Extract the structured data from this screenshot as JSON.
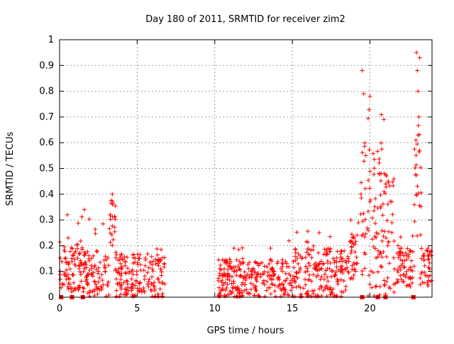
{
  "chart_data": {
    "type": "scatter",
    "title": "Day 180 of 2011, SRMTID for receiver zim2",
    "xlabel": "GPS time / hours",
    "ylabel": "SRMTID / TECUs",
    "xlim": [
      0,
      24
    ],
    "ylim": [
      0,
      1
    ],
    "xticks": [
      "0",
      "5",
      "10",
      "15",
      "20"
    ],
    "yticks": [
      "0",
      "0.1",
      "0.2",
      "0.3",
      "0.4",
      "0.5",
      "0.6",
      "0.7",
      "0.8",
      "0.9",
      "1"
    ],
    "grid": true,
    "marker_color": "#ff0000",
    "series": [
      {
        "name": "SRMTID",
        "marker": "plus",
        "segments": [
          {
            "x_range": [
              0.0,
              1.5
            ],
            "y_base": 0.12,
            "y_spread": 0.1,
            "y_peak": 0.32
          },
          {
            "x_range": [
              1.5,
              3.2
            ],
            "y_base": 0.09,
            "y_spread": 0.09,
            "y_peak": 0.34
          },
          {
            "x_range": [
              3.2,
              3.6
            ],
            "y_base": 0.3,
            "y_spread": 0.1,
            "y_peak": 0.4
          },
          {
            "x_range": [
              3.6,
              6.8
            ],
            "y_base": 0.08,
            "y_spread": 0.09,
            "y_peak": 0.19
          },
          {
            "x_range": [
              10.2,
              15.0
            ],
            "y_base": 0.07,
            "y_spread": 0.08,
            "y_peak": 0.22
          },
          {
            "x_range": [
              15.0,
              18.5
            ],
            "y_base": 0.09,
            "y_spread": 0.1,
            "y_peak": 0.27
          },
          {
            "x_range": [
              18.5,
              19.2
            ],
            "y_base": 0.15,
            "y_spread": 0.1,
            "y_peak": 0.3
          },
          {
            "x_range": [
              19.2,
              21.0
            ],
            "y_base": 0.3,
            "y_spread": 0.3,
            "y_peak": 0.88
          },
          {
            "x_range": [
              21.0,
              21.6
            ],
            "y_base": 0.25,
            "y_spread": 0.25,
            "y_peak": 0.57
          },
          {
            "x_range": [
              21.6,
              22.8
            ],
            "y_base": 0.12,
            "y_spread": 0.08,
            "y_peak": 0.25
          },
          {
            "x_range": [
              22.8,
              23.3
            ],
            "y_base": 0.35,
            "y_spread": 0.35,
            "y_peak": 0.95
          },
          {
            "x_range": [
              23.3,
              24.0
            ],
            "y_base": 0.12,
            "y_spread": 0.08,
            "y_peak": 0.2
          }
        ],
        "notable_points": [
          {
            "x": 19.5,
            "y": 0.88
          },
          {
            "x": 19.6,
            "y": 0.79
          },
          {
            "x": 20.0,
            "y": 0.78
          },
          {
            "x": 20.9,
            "y": 0.69
          },
          {
            "x": 23.0,
            "y": 0.95
          },
          {
            "x": 23.05,
            "y": 0.88
          },
          {
            "x": 23.1,
            "y": 0.8
          },
          {
            "x": 23.15,
            "y": 0.7
          },
          {
            "x": 23.2,
            "y": 0.57
          },
          {
            "x": 3.4,
            "y": 0.4
          },
          {
            "x": 1.6,
            "y": 0.34
          },
          {
            "x": 0.5,
            "y": 0.32
          }
        ]
      },
      {
        "name": "zero markers",
        "marker": "square",
        "x": [
          0.1,
          0.8,
          1.5,
          19.5,
          20.5,
          21.0,
          22.8
        ]
      }
    ]
  }
}
